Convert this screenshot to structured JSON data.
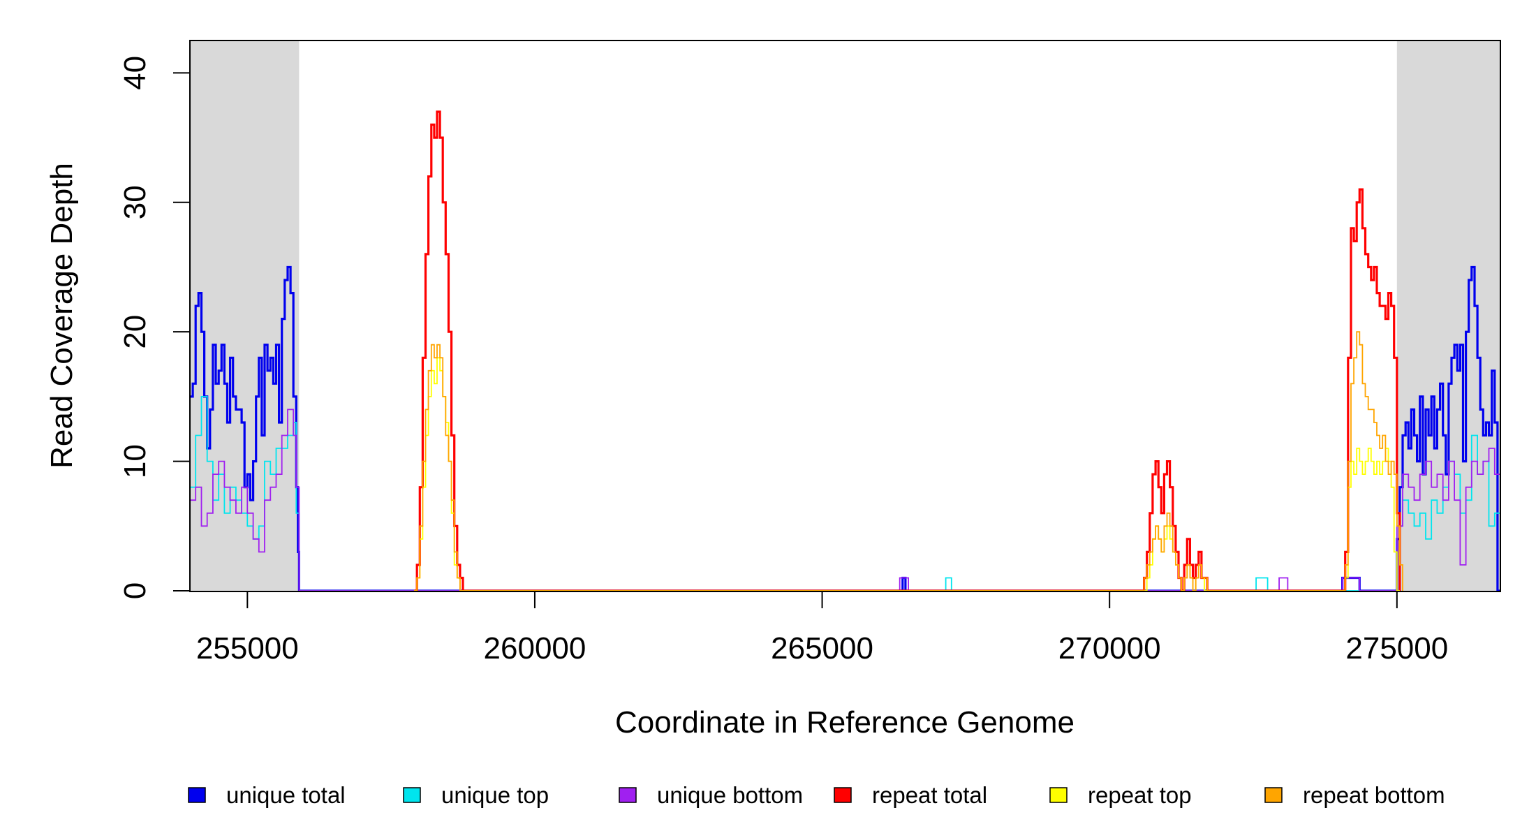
{
  "chart_data": {
    "type": "line",
    "title": "",
    "xlabel": "Coordinate in Reference Genome",
    "ylabel": "Read Coverage Depth",
    "xlim": [
      254000,
      276800
    ],
    "ylim": [
      0,
      42.5
    ],
    "x_ticks": [
      255000,
      260000,
      265000,
      270000,
      275000
    ],
    "x_tick_labels": [
      "255000",
      "260000",
      "265000",
      "270000",
      "275000"
    ],
    "y_ticks": [
      0,
      10,
      20,
      30,
      40
    ],
    "y_tick_labels": [
      "0",
      "10",
      "20",
      "30",
      "40"
    ],
    "grid": false,
    "legend_position": "bottom",
    "shaded_regions": [
      {
        "from": 254000,
        "to": 255900,
        "color": "#d9d9d9"
      },
      {
        "from": 275000,
        "to": 276800,
        "color": "#d9d9d9"
      }
    ],
    "series": [
      {
        "name": "unique total",
        "color": "#0000ee",
        "x": [
          254000,
          254050,
          254100,
          254150,
          254200,
          254250,
          254300,
          254350,
          254400,
          254450,
          254500,
          254550,
          254600,
          254650,
          254700,
          254750,
          254800,
          254850,
          254900,
          254950,
          255000,
          255050,
          255100,
          255150,
          255200,
          255250,
          255300,
          255350,
          255400,
          255450,
          255500,
          255550,
          255600,
          255650,
          255700,
          255750,
          255800,
          255850,
          255880,
          255900,
          258000,
          266300,
          266400,
          266450,
          271000,
          274000,
          274050,
          274300,
          274350,
          274900,
          275000,
          275050,
          275100,
          275150,
          275200,
          275250,
          275300,
          275350,
          275400,
          275450,
          275500,
          275550,
          275600,
          275650,
          275700,
          275750,
          275800,
          275850,
          275900,
          275950,
          276000,
          276050,
          276100,
          276150,
          276200,
          276250,
          276300,
          276350,
          276400,
          276450,
          276500,
          276550,
          276600,
          276650,
          276700,
          276750,
          276800
        ],
        "y": [
          15,
          16,
          22,
          23,
          20,
          15,
          11,
          14,
          19,
          16,
          17,
          19,
          16,
          13,
          18,
          15,
          14,
          14,
          13,
          8,
          9,
          7,
          10,
          15,
          18,
          12,
          19,
          17,
          18,
          16,
          19,
          13,
          21,
          24,
          25,
          23,
          15,
          8,
          3,
          0,
          0,
          0,
          1,
          0,
          0,
          0,
          1,
          1,
          0,
          0,
          4,
          8,
          12,
          13,
          11,
          14,
          12,
          10,
          15,
          9,
          14,
          12,
          15,
          11,
          14,
          16,
          12,
          9,
          16,
          18,
          19,
          17,
          19,
          10,
          20,
          24,
          25,
          22,
          18,
          14,
          12,
          13,
          12,
          17,
          13,
          0,
          0
        ]
      },
      {
        "name": "unique top",
        "color": "#00e5ee",
        "x": [
          254000,
          254100,
          254200,
          254300,
          254400,
          254500,
          254600,
          254700,
          254800,
          254900,
          255000,
          255100,
          255200,
          255300,
          255400,
          255500,
          255600,
          255700,
          255800,
          255850,
          255900,
          267100,
          267150,
          267200,
          267250,
          272500,
          272550,
          272700,
          272750,
          274800,
          275000,
          275100,
          275200,
          275300,
          275400,
          275500,
          275600,
          275700,
          275800,
          275900,
          276000,
          276100,
          276200,
          276300,
          276400,
          276500,
          276600,
          276700,
          276800
        ],
        "y": [
          8,
          12,
          15,
          10,
          7,
          9,
          6,
          8,
          7,
          6,
          5,
          4,
          5,
          10,
          9,
          11,
          11,
          12,
          13,
          6,
          0,
          0,
          1,
          1,
          0,
          0,
          1,
          1,
          0,
          0,
          5,
          7,
          6,
          5,
          6,
          4,
          7,
          6,
          8,
          10,
          9,
          6,
          7,
          12,
          9,
          10,
          5,
          6,
          7
        ]
      },
      {
        "name": "unique bottom",
        "color": "#a020f0",
        "x": [
          254000,
          254100,
          254200,
          254300,
          254400,
          254500,
          254600,
          254700,
          254800,
          254900,
          255000,
          255100,
          255200,
          255300,
          255400,
          255500,
          255600,
          255700,
          255800,
          255850,
          255900,
          266300,
          266350,
          266450,
          266500,
          272900,
          272950,
          273050,
          273100,
          274000,
          274050,
          274300,
          274350,
          274900,
          275000,
          275100,
          275200,
          275300,
          275400,
          275500,
          275600,
          275700,
          275800,
          275900,
          276000,
          276100,
          276200,
          276300,
          276400,
          276500,
          276600,
          276700,
          276800
        ],
        "y": [
          7,
          8,
          5,
          6,
          9,
          10,
          8,
          7,
          6,
          8,
          6,
          4,
          3,
          7,
          8,
          9,
          12,
          14,
          12,
          8,
          0,
          0,
          1,
          1,
          0,
          0,
          1,
          1,
          0,
          0,
          1,
          1,
          0,
          0,
          5,
          9,
          8,
          7,
          9,
          10,
          8,
          9,
          7,
          10,
          7,
          2,
          8,
          10,
          9,
          10,
          11,
          9,
          8
        ]
      },
      {
        "name": "repeat total",
        "color": "#ff0000",
        "x": [
          257900,
          257950,
          258000,
          258050,
          258100,
          258150,
          258200,
          258250,
          258300,
          258350,
          258400,
          258450,
          258500,
          258550,
          258600,
          258650,
          258700,
          258750,
          270550,
          270600,
          270650,
          270700,
          270750,
          270800,
          270850,
          270900,
          270950,
          271000,
          271050,
          271100,
          271150,
          271200,
          271250,
          271300,
          271350,
          271400,
          271450,
          271500,
          271550,
          271600,
          271650,
          271700,
          271750,
          271800,
          274050,
          274100,
          274150,
          274200,
          274250,
          274300,
          274350,
          274400,
          274450,
          274500,
          274550,
          274600,
          274650,
          274700,
          274750,
          274800,
          274850,
          274900,
          274950,
          275000,
          275050
        ],
        "y": [
          0,
          2,
          8,
          18,
          26,
          32,
          36,
          35,
          37,
          35,
          30,
          26,
          20,
          12,
          5,
          2,
          1,
          0,
          0,
          1,
          3,
          6,
          9,
          10,
          8,
          6,
          9,
          10,
          8,
          5,
          3,
          1,
          0,
          2,
          4,
          2,
          1,
          2,
          3,
          1,
          1,
          0,
          0,
          0,
          0,
          3,
          18,
          28,
          27,
          30,
          31,
          28,
          26,
          25,
          24,
          25,
          23,
          22,
          22,
          21,
          23,
          22,
          18,
          6,
          0
        ]
      },
      {
        "name": "repeat top",
        "color": "#ffff00",
        "x": [
          257900,
          257950,
          258000,
          258050,
          258100,
          258150,
          258200,
          258250,
          258300,
          258350,
          258400,
          258450,
          258500,
          258550,
          258600,
          258650,
          258700,
          270550,
          270600,
          270650,
          270700,
          270750,
          270800,
          270850,
          270900,
          270950,
          271000,
          271050,
          271100,
          271150,
          271200,
          271250,
          271300,
          271350,
          271400,
          271450,
          271500,
          271550,
          271600,
          271650,
          271700,
          274050,
          274100,
          274150,
          274200,
          274250,
          274300,
          274350,
          274400,
          274450,
          274500,
          274550,
          274600,
          274650,
          274700,
          274750,
          274800,
          274850,
          274900,
          274950,
          275000,
          275050
        ],
        "y": [
          0,
          1,
          4,
          8,
          12,
          15,
          17,
          16,
          18,
          17,
          15,
          13,
          10,
          6,
          2,
          1,
          0,
          0,
          0,
          1,
          2,
          4,
          5,
          4,
          3,
          4,
          5,
          4,
          3,
          2,
          1,
          0,
          1,
          2,
          1,
          0,
          1,
          2,
          1,
          0,
          0,
          0,
          1,
          8,
          10,
          9,
          11,
          10,
          9,
          10,
          11,
          10,
          9,
          10,
          9,
          10,
          11,
          10,
          8,
          3,
          0,
          0
        ]
      },
      {
        "name": "repeat bottom",
        "color": "#ffa500",
        "x": [
          257900,
          257950,
          258000,
          258050,
          258100,
          258150,
          258200,
          258250,
          258300,
          258350,
          258400,
          258450,
          258500,
          258550,
          258600,
          258650,
          258700,
          258750,
          270550,
          270600,
          270650,
          270700,
          270750,
          270800,
          270850,
          270900,
          270950,
          271000,
          271050,
          271100,
          271150,
          271200,
          271250,
          271300,
          271350,
          271400,
          271450,
          271500,
          271550,
          271600,
          271650,
          271700,
          271750,
          274050,
          274100,
          274150,
          274200,
          274250,
          274300,
          274350,
          274400,
          274450,
          274500,
          274550,
          274600,
          274650,
          274700,
          274750,
          274800,
          274850,
          274900,
          274950,
          275000,
          275050,
          275100
        ],
        "y": [
          0,
          1,
          5,
          10,
          14,
          17,
          19,
          18,
          19,
          18,
          15,
          12,
          10,
          7,
          3,
          1,
          0,
          0,
          0,
          1,
          2,
          3,
          4,
          5,
          4,
          3,
          5,
          6,
          5,
          3,
          2,
          1,
          0,
          1,
          2,
          1,
          0,
          1,
          2,
          1,
          1,
          0,
          0,
          0,
          2,
          10,
          16,
          18,
          20,
          19,
          16,
          15,
          14,
          14,
          13,
          12,
          11,
          12,
          10,
          9,
          10,
          9,
          5,
          2,
          0
        ]
      }
    ]
  }
}
